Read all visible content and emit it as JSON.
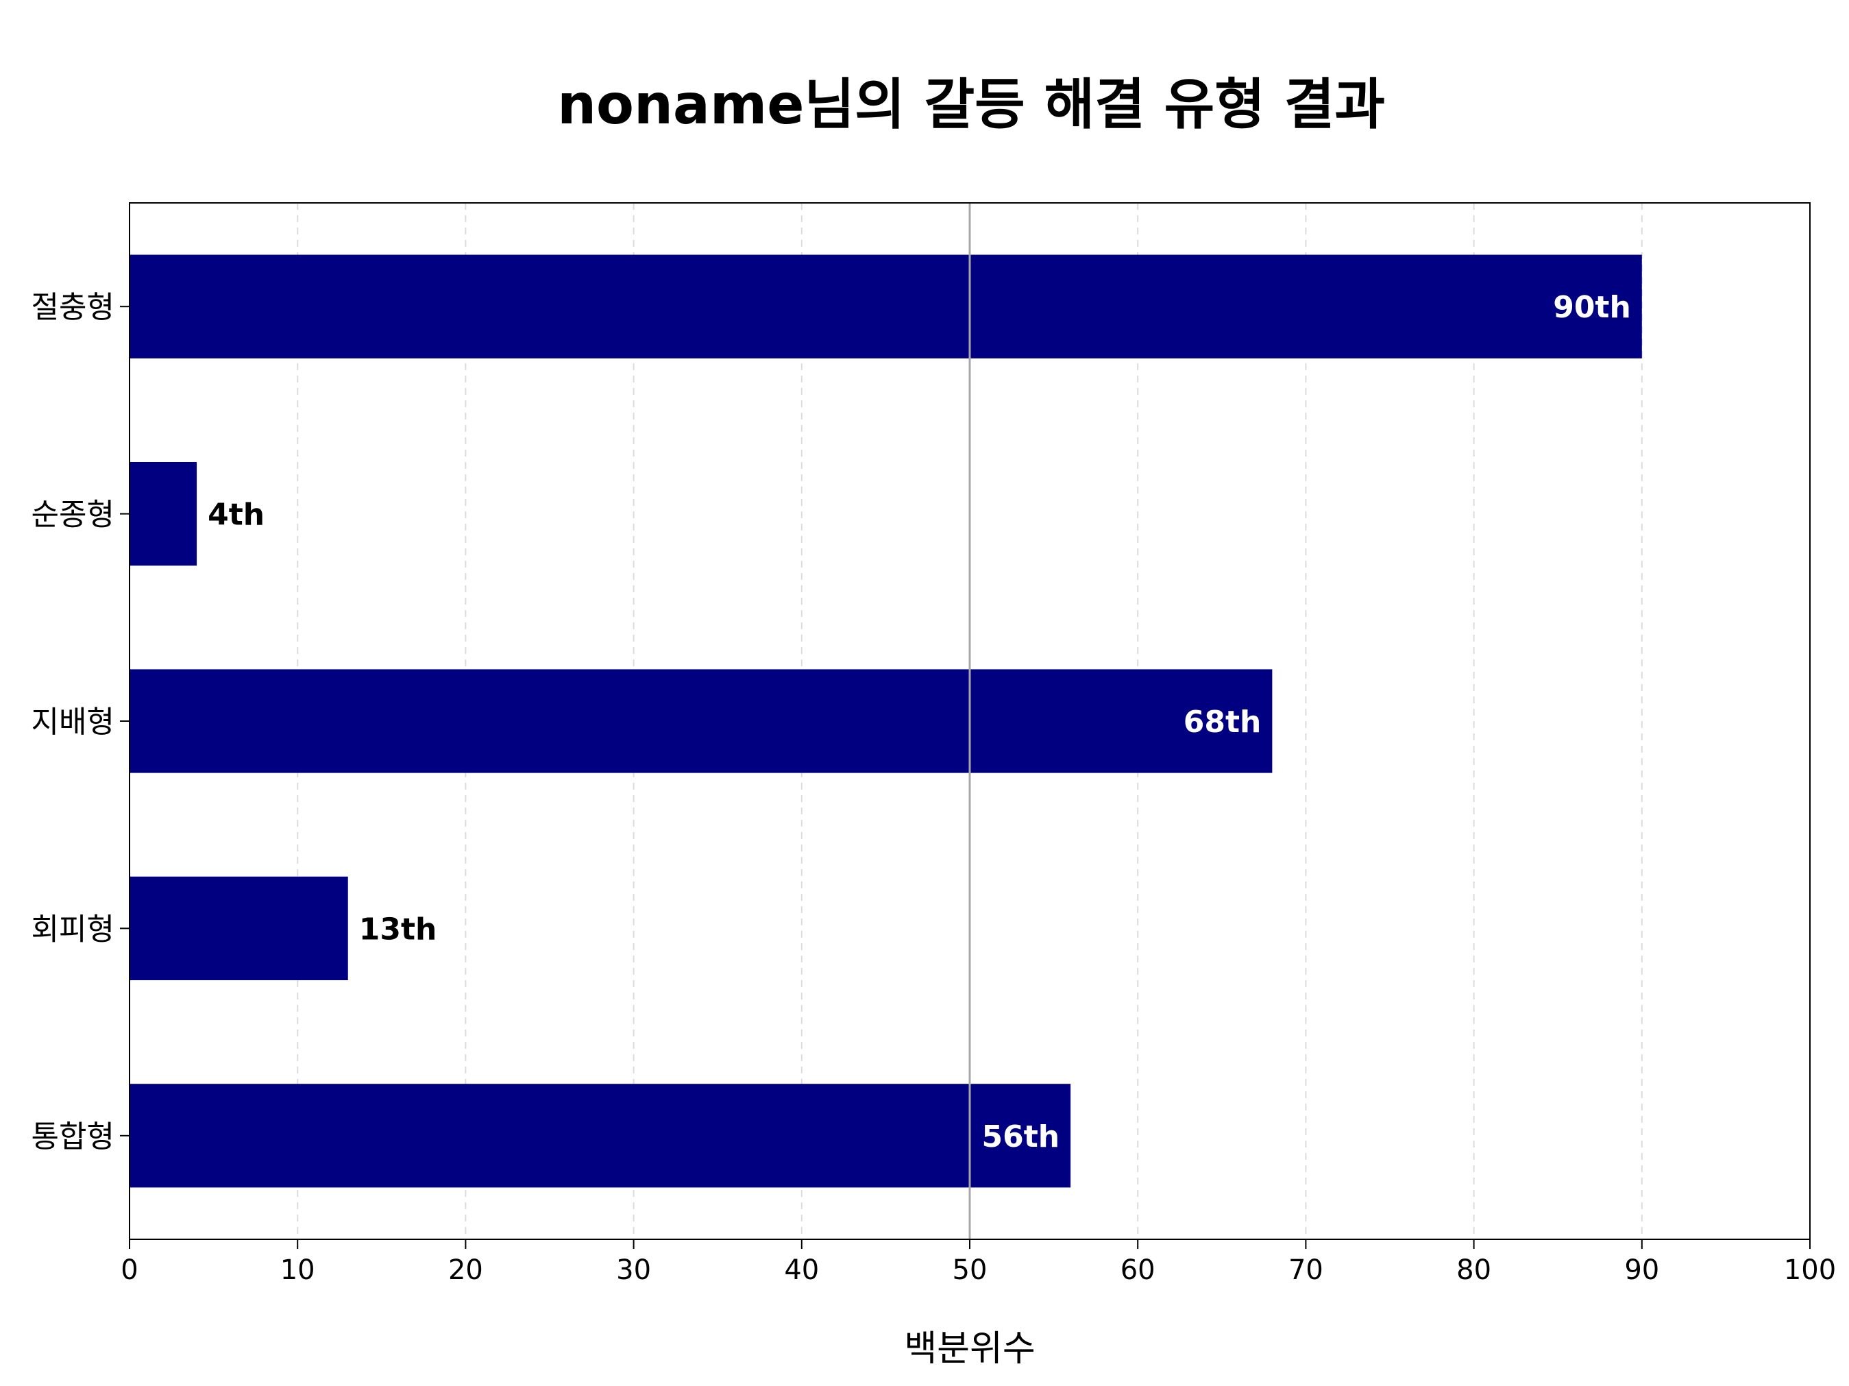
{
  "chart_data": {
    "type": "bar",
    "orientation": "horizontal",
    "title": "noname님의 갈등 해결 유형 결과",
    "xlabel": "백분위수",
    "ylabel": "",
    "categories": [
      "절충형",
      "순종형",
      "지배형",
      "회피형",
      "통합형"
    ],
    "values": [
      90,
      4,
      68,
      13,
      56
    ],
    "data_labels": [
      "90th",
      "4th",
      "68th",
      "13th",
      "56th"
    ],
    "xlim": [
      0,
      100
    ],
    "xticks": [
      0,
      10,
      20,
      30,
      40,
      50,
      60,
      70,
      80,
      90,
      100
    ],
    "reference_line": 50,
    "grid": "x-dashed",
    "bar_color": "#000080",
    "label_inside_color": "#ffffff",
    "label_outside_color": "#000000"
  }
}
